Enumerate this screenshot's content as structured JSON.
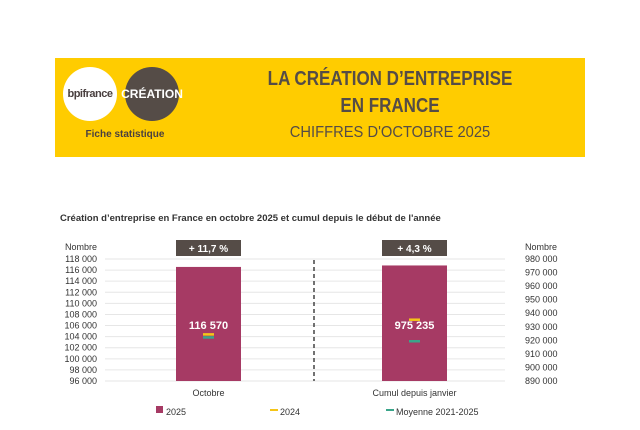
{
  "header": {
    "logo_bpifrance": "bpifrance",
    "logo_creation": "CRÉATION",
    "subtitle": "Fiche statistique",
    "title_line1": "LA CRÉATION D’ENTREPRISE",
    "title_line2": "EN FRANCE",
    "period": "CHIFFRES D'OCTOBRE 2025"
  },
  "chart_data": {
    "type": "bar",
    "title": "Création d’entreprise en France en octobre 2025 et cumul depuis le début de l'année",
    "categories": [
      "Octobre",
      "Cumul depuis janvier"
    ],
    "left_axis": {
      "label": "Nombre",
      "ylim": [
        96000,
        118000
      ],
      "ticks": [
        "96 000",
        "98 000",
        "100 000",
        "102 000",
        "104 000",
        "106 000",
        "108 000",
        "110 000",
        "112 000",
        "114 000",
        "116 000",
        "118 000"
      ]
    },
    "right_axis": {
      "label": "Nombre",
      "ylim": [
        890000,
        980000
      ],
      "ticks": [
        "890 000",
        "900 000",
        "910 000",
        "920 000",
        "930 000",
        "940 000",
        "950 000",
        "960 000",
        "970 000",
        "980 000"
      ]
    },
    "series": [
      {
        "name": "2025",
        "type": "bar",
        "values": [
          116570,
          975235
        ],
        "color": "#a63a64"
      },
      {
        "name": "2024",
        "type": "marker",
        "values": [
          104360,
          935030
        ],
        "color": "#f5c518"
      },
      {
        "name": "Moyenne 2021-2025",
        "type": "marker",
        "values": [
          103900,
          919500
        ],
        "color": "#3aa58a"
      }
    ],
    "data_labels": [
      "116 570",
      "975 235"
    ],
    "badges": [
      "+ 11,7 %",
      "+ 4,3 %"
    ],
    "grid": true,
    "legend": "bottom"
  }
}
